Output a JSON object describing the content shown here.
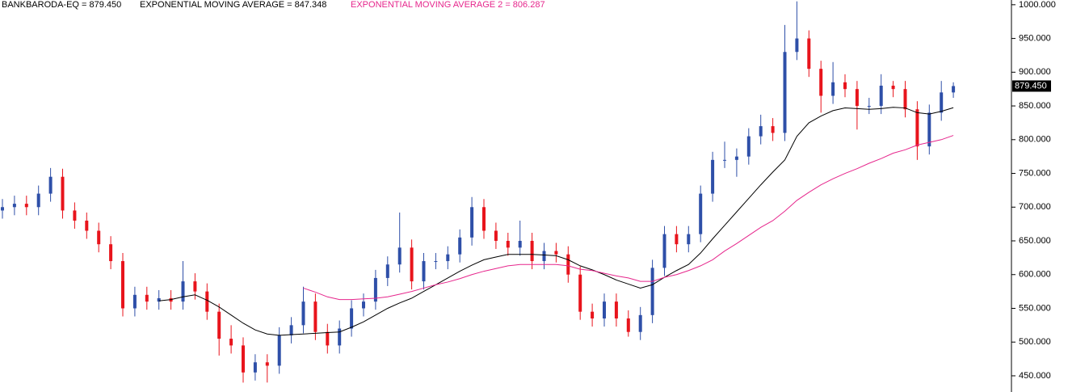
{
  "chart_data": {
    "type": "candlestick",
    "ohlc": {
      "name": "BANKBARODA-EQ = 879.450",
      "up_color": "#2e4fa8",
      "down_color": "#e8141c",
      "open": [
        695,
        700,
        705,
        700,
        720,
        745,
        695,
        680,
        665,
        645,
        620,
        550,
        570,
        560,
        565,
        560,
        590,
        575,
        545,
        505,
        495,
        455,
        470,
        465,
        510,
        525,
        560,
        515,
        495,
        520,
        550,
        560,
        595,
        615,
        640,
        590,
        620,
        620,
        630,
        655,
        700,
        665,
        650,
        640,
        650,
        620,
        635,
        630,
        600,
        545,
        535,
        560,
        535,
        515,
        540,
        610,
        660,
        645,
        660,
        720,
        770,
        770,
        775,
        805,
        820,
        810,
        930,
        950,
        905,
        865,
        885,
        875,
        850,
        850,
        880,
        875,
        845,
        790,
        840,
        870
      ],
      "high": [
        712,
        717,
        717,
        732,
        758,
        757,
        707,
        692,
        677,
        657,
        632,
        582,
        582,
        577,
        577,
        620,
        602,
        587,
        557,
        525,
        507,
        482,
        482,
        522,
        537,
        582,
        572,
        527,
        532,
        562,
        572,
        607,
        627,
        692,
        652,
        632,
        632,
        642,
        667,
        715,
        712,
        677,
        662,
        680,
        662,
        647,
        647,
        642,
        612,
        557,
        572,
        572,
        547,
        552,
        622,
        672,
        672,
        672,
        732,
        782,
        797,
        787,
        817,
        837,
        832,
        970,
        1005,
        962,
        917,
        915,
        897,
        887,
        862,
        897,
        887,
        887,
        857,
        852,
        887,
        885
      ],
      "low": [
        683,
        688,
        688,
        688,
        708,
        683,
        668,
        653,
        633,
        608,
        538,
        538,
        548,
        548,
        548,
        548,
        563,
        533,
        480,
        483,
        440,
        443,
        440,
        453,
        498,
        513,
        503,
        483,
        483,
        508,
        538,
        548,
        583,
        603,
        578,
        578,
        608,
        608,
        618,
        643,
        653,
        638,
        628,
        628,
        608,
        608,
        618,
        588,
        533,
        523,
        523,
        523,
        508,
        503,
        528,
        598,
        633,
        633,
        648,
        708,
        758,
        745,
        763,
        793,
        798,
        798,
        918,
        893,
        840,
        853,
        863,
        815,
        838,
        838,
        863,
        833,
        770,
        778,
        828,
        862
      ],
      "close": [
        700,
        705,
        700,
        720,
        745,
        695,
        680,
        665,
        645,
        620,
        550,
        570,
        560,
        565,
        560,
        590,
        575,
        545,
        505,
        495,
        455,
        470,
        465,
        510,
        525,
        560,
        515,
        495,
        520,
        550,
        560,
        595,
        615,
        640,
        590,
        620,
        620,
        630,
        655,
        700,
        665,
        650,
        640,
        650,
        620,
        635,
        630,
        600,
        545,
        535,
        560,
        535,
        515,
        540,
        610,
        660,
        645,
        660,
        720,
        770,
        770,
        775,
        805,
        820,
        810,
        930,
        950,
        905,
        865,
        885,
        875,
        850,
        850,
        880,
        875,
        845,
        790,
        840,
        870,
        879.45
      ]
    },
    "series": [
      {
        "name": "EXPONENTIAL MOVING AVERAGE = 847.348",
        "color": "#000000",
        "values": [
          null,
          null,
          null,
          null,
          null,
          null,
          null,
          null,
          null,
          null,
          null,
          null,
          null,
          561,
          563,
          567,
          570,
          562,
          552,
          540,
          528,
          518,
          512,
          510,
          511,
          512,
          513,
          514,
          515,
          522,
          530,
          540,
          550,
          558,
          565,
          575,
          585,
          595,
          605,
          614,
          622,
          626,
          630,
          630,
          630,
          629,
          628,
          622,
          613,
          607,
          600,
          592,
          586,
          580,
          585,
          596,
          606,
          615,
          632,
          653,
          673,
          693,
          713,
          733,
          752,
          770,
          805,
          825,
          835,
          843,
          847,
          846,
          845,
          846,
          848,
          847,
          840,
          838,
          842,
          847.348
        ]
      },
      {
        "name": "EXPONENTIAL MOVING AVERAGE 2 = 806.287",
        "color": "#e6268c",
        "values": [
          null,
          null,
          null,
          null,
          null,
          null,
          null,
          null,
          null,
          null,
          null,
          null,
          null,
          null,
          null,
          null,
          null,
          null,
          null,
          null,
          null,
          null,
          null,
          null,
          null,
          580,
          574,
          567,
          563,
          563,
          564,
          565,
          567,
          571,
          575,
          580,
          585,
          589,
          594,
          600,
          605,
          609,
          613,
          615,
          615,
          615,
          615,
          613,
          608,
          606,
          602,
          598,
          595,
          590,
          590,
          596,
          600,
          606,
          613,
          622,
          635,
          646,
          658,
          670,
          680,
          694,
          710,
          722,
          733,
          742,
          750,
          757,
          765,
          772,
          780,
          785,
          792,
          796,
          800,
          806.287
        ]
      }
    ],
    "price_label": {
      "value": 879.45,
      "label": "879.450"
    },
    "ylim": [
      426,
      1007
    ],
    "yticks": [
      {
        "value": 450,
        "label": "450.000"
      },
      {
        "value": 500,
        "label": "500.000"
      },
      {
        "value": 550,
        "label": "550.000"
      },
      {
        "value": 600,
        "label": "600.000"
      },
      {
        "value": 650,
        "label": "650.000"
      },
      {
        "value": 700,
        "label": "700.000"
      },
      {
        "value": 750,
        "label": "750.000"
      },
      {
        "value": 800,
        "label": "800.000"
      },
      {
        "value": 850,
        "label": "850.000"
      },
      {
        "value": 900,
        "label": "900.000"
      },
      {
        "value": 950,
        "label": "950.000"
      },
      {
        "value": 1000,
        "label": "1000.000"
      }
    ]
  }
}
